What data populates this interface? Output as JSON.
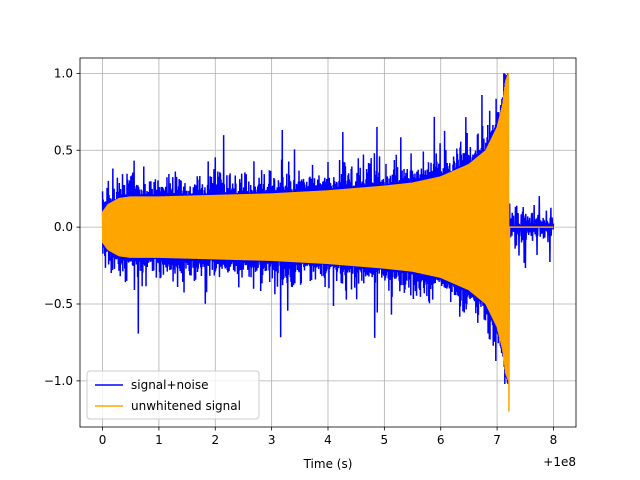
{
  "chart_data": {
    "type": "line",
    "title": "",
    "xlabel": "Time (s)",
    "ylabel": "",
    "x_offset_label": "+1e8",
    "xlim": [
      -0.4,
      8.4
    ],
    "ylim": [
      -1.3,
      1.1
    ],
    "xticks": [
      0,
      1,
      2,
      3,
      4,
      5,
      6,
      7,
      8
    ],
    "yticks": [
      -1.0,
      -0.5,
      0.0,
      0.5,
      1.0
    ],
    "xtick_labels": [
      "0",
      "1",
      "2",
      "3",
      "4",
      "5",
      "6",
      "7",
      "8"
    ],
    "ytick_labels": [
      "−1.0",
      "−0.5",
      "0.0",
      "0.5",
      "1.0"
    ],
    "grid": true,
    "legend_position": "bottom-left",
    "series": [
      {
        "name": "signal+noise",
        "color": "#0000ff",
        "x_range": [
          0,
          8
        ],
        "typical_envelope": 0.35,
        "max": 1.0,
        "min": -1.02
      },
      {
        "name": "unwhitened signal",
        "color": "#ffa500",
        "x_range": [
          0,
          8
        ],
        "envelope": {
          "x": [
            0,
            0.1,
            0.3,
            0.5,
            1.0,
            2.0,
            3.0,
            4.0,
            5.0,
            5.5,
            6.0,
            6.5,
            6.8,
            7.0,
            7.1,
            7.15,
            7.2
          ],
          "amplitude": [
            0.1,
            0.15,
            0.19,
            0.2,
            0.2,
            0.21,
            0.22,
            0.24,
            0.27,
            0.29,
            0.33,
            0.41,
            0.5,
            0.65,
            0.8,
            0.95,
            1.0
          ]
        },
        "merger_time": 7.2,
        "merger_min": -1.2,
        "post_merger_value": 0.0
      }
    ]
  }
}
